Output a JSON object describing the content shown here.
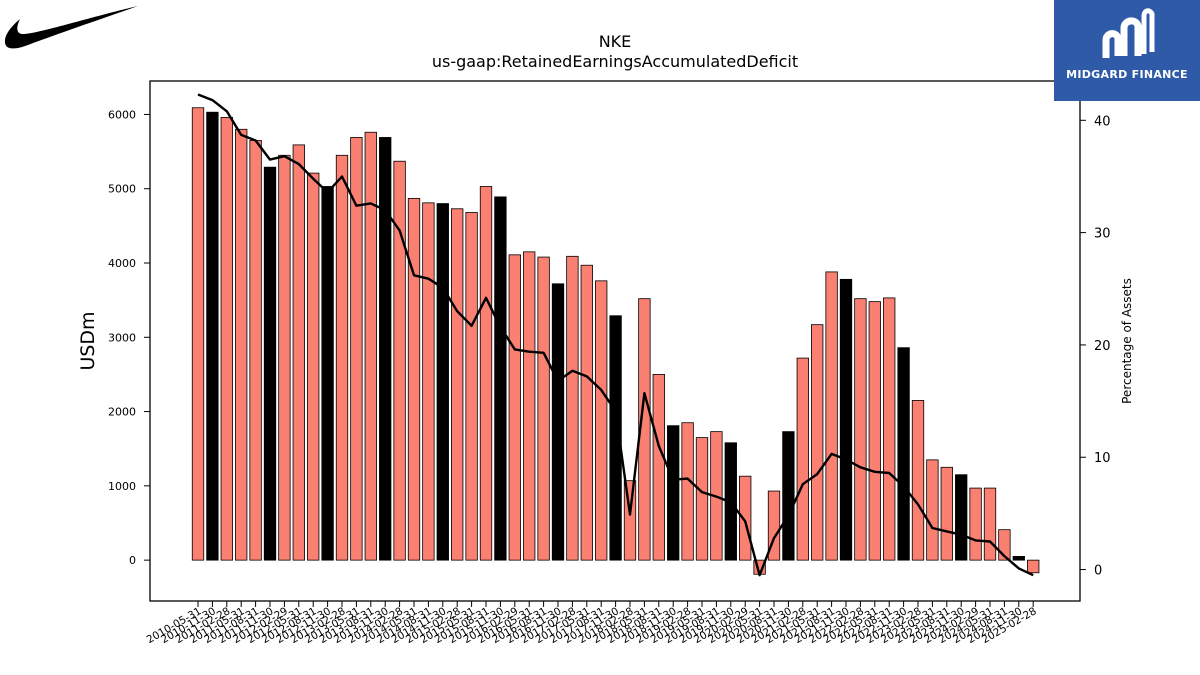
{
  "company_logo": "nike-swoosh",
  "brand": {
    "name": "MIDGARD FINANCE",
    "logo": "midgard-mark",
    "color": "#2f5aa8"
  },
  "chart_data": {
    "type": "bar",
    "title": "NKE",
    "subtitle": "us-gaap:RetainedEarningsAccumulatedDeficit",
    "ylabel": "USDm",
    "y2label": "Percentage of Assets",
    "ylim": [
      -550,
      6450
    ],
    "y2lim": [
      -2.8,
      43.5
    ],
    "yticks": [
      0,
      1000,
      2000,
      3000,
      4000,
      5000,
      6000
    ],
    "y2ticks": [
      0,
      10,
      20,
      30,
      40
    ],
    "categories": [
      "2010-05-31",
      "2010-11-30",
      "2011-02-28",
      "2011-05-31",
      "2011-08-31",
      "2011-11-30",
      "2012-02-29",
      "2012-05-31",
      "2012-08-31",
      "2012-11-30",
      "2013-02-28",
      "2013-05-31",
      "2013-08-31",
      "2013-11-30",
      "2014-02-28",
      "2014-05-31",
      "2014-08-31",
      "2014-11-30",
      "2015-02-28",
      "2015-05-31",
      "2015-08-31",
      "2015-11-30",
      "2016-02-29",
      "2016-05-31",
      "2016-08-31",
      "2016-11-30",
      "2017-02-28",
      "2017-05-31",
      "2017-08-31",
      "2017-11-30",
      "2018-02-28",
      "2018-05-31",
      "2018-08-31",
      "2018-11-30",
      "2019-02-28",
      "2019-05-31",
      "2019-08-31",
      "2019-11-30",
      "2020-02-29",
      "2020-05-31",
      "2020-08-31",
      "2020-11-30",
      "2021-02-28",
      "2021-05-31",
      "2021-08-31",
      "2021-11-30",
      "2022-02-28",
      "2022-05-31",
      "2022-08-31",
      "2022-11-30",
      "2023-02-28",
      "2023-05-31",
      "2023-08-31",
      "2023-11-30",
      "2024-02-29",
      "2024-05-31",
      "2024-08-31",
      "2024-11-30",
      "2025-02-28"
    ],
    "bars": {
      "name": "Retained Earnings (Accumulated Deficit)",
      "values": [
        6090,
        6030,
        5960,
        5800,
        5650,
        5290,
        5450,
        5590,
        5210,
        5030,
        5450,
        5690,
        5760,
        5690,
        5370,
        4870,
        4810,
        4800,
        4730,
        4680,
        5030,
        4890,
        4110,
        4150,
        4080,
        3720,
        4090,
        3970,
        3760,
        3290,
        1070,
        3520,
        2500,
        1810,
        1850,
        1650,
        1730,
        1580,
        1130,
        -190,
        930,
        1730,
        2720,
        3170,
        3880,
        3780,
        3520,
        3480,
        3530,
        2860,
        2150,
        1350,
        1250,
        1150,
        970,
        970,
        410,
        50,
        -170
      ],
      "colors": {
        "fiscal_year_end": "#000000",
        "quarter": "#fa8072"
      },
      "fiscal_year_end": [
        false,
        true,
        false,
        false,
        false,
        true,
        false,
        false,
        false,
        true,
        false,
        false,
        false,
        true,
        false,
        false,
        false,
        true,
        false,
        false,
        false,
        true,
        false,
        false,
        false,
        true,
        false,
        false,
        false,
        true,
        false,
        false,
        false,
        true,
        false,
        false,
        false,
        true,
        false,
        false,
        false,
        true,
        false,
        false,
        false,
        true,
        false,
        false,
        false,
        true,
        false,
        false,
        false,
        true,
        false,
        false,
        false,
        true,
        false
      ]
    },
    "line": {
      "name": "Percentage of Assets",
      "color": "#000000",
      "values": [
        42.3,
        41.8,
        40.8,
        38.7,
        38.2,
        36.5,
        36.8,
        36.1,
        34.8,
        33.6,
        35.0,
        32.4,
        32.6,
        32.0,
        30.2,
        26.2,
        25.9,
        25.1,
        23.0,
        21.7,
        24.2,
        21.6,
        19.6,
        19.4,
        19.3,
        16.8,
        17.7,
        17.2,
        16.0,
        14.1,
        4.9,
        15.7,
        11.0,
        8.0,
        8.1,
        6.9,
        6.5,
        6.0,
        4.3,
        -0.5,
        2.8,
        4.8,
        7.6,
        8.5,
        10.3,
        9.8,
        9.1,
        8.7,
        8.6,
        7.4,
        5.8,
        3.7,
        3.4,
        3.1,
        2.6,
        2.5,
        1.2,
        0.1,
        -0.5
      ]
    }
  }
}
